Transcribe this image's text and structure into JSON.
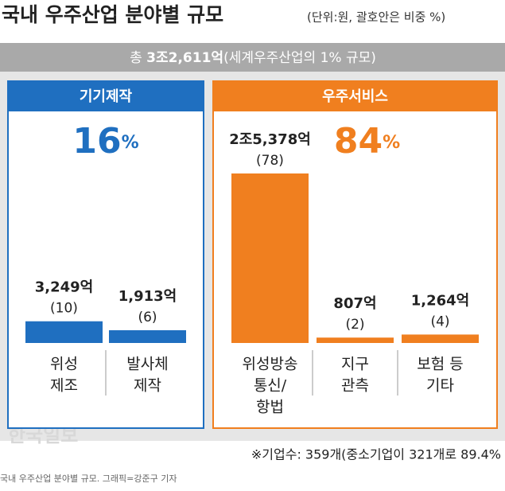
{
  "chart_data": {
    "type": "bar",
    "title": "국내 우주산업 분야별 규모",
    "subtitle": "(단위:원, 괄호안은 비중 %)",
    "total_prefix": "총",
    "total": "3조2,611억",
    "total_note": "(세계우주산업의 1% 규모)",
    "groups": [
      {
        "name": "기기제작",
        "color": "#1f6fc0",
        "share": 16,
        "share_unit": "%",
        "categories": [
          [
            "위성",
            "제조"
          ],
          [
            "발사체",
            "제작"
          ]
        ],
        "values": [
          3249,
          1913
        ],
        "value_labels": [
          "3,249억",
          "1,913억"
        ],
        "shares": [
          10,
          6
        ],
        "share_labels": [
          "(10)",
          "(6)"
        ]
      },
      {
        "name": "우주서비스",
        "color": "#f07f1f",
        "share": 84,
        "share_unit": "%",
        "categories": [
          [
            "위성방송",
            "통신/",
            "항법"
          ],
          [
            "지구",
            "관측"
          ],
          [
            "보험 등",
            "기타"
          ]
        ],
        "values": [
          25378,
          807,
          1264
        ],
        "value_labels": [
          "2조5,378억",
          "807억",
          "1,264억"
        ],
        "shares": [
          78,
          2,
          4
        ],
        "share_labels": [
          "(78)",
          "(2)",
          "(4)"
        ]
      }
    ],
    "footnote": "※기업수: 359개(중소기업이 321개로 89.4%",
    "watermark": "한국일보",
    "caption": "국내 우주산업 분야별 규모. 그래픽=강준구 기자"
  }
}
